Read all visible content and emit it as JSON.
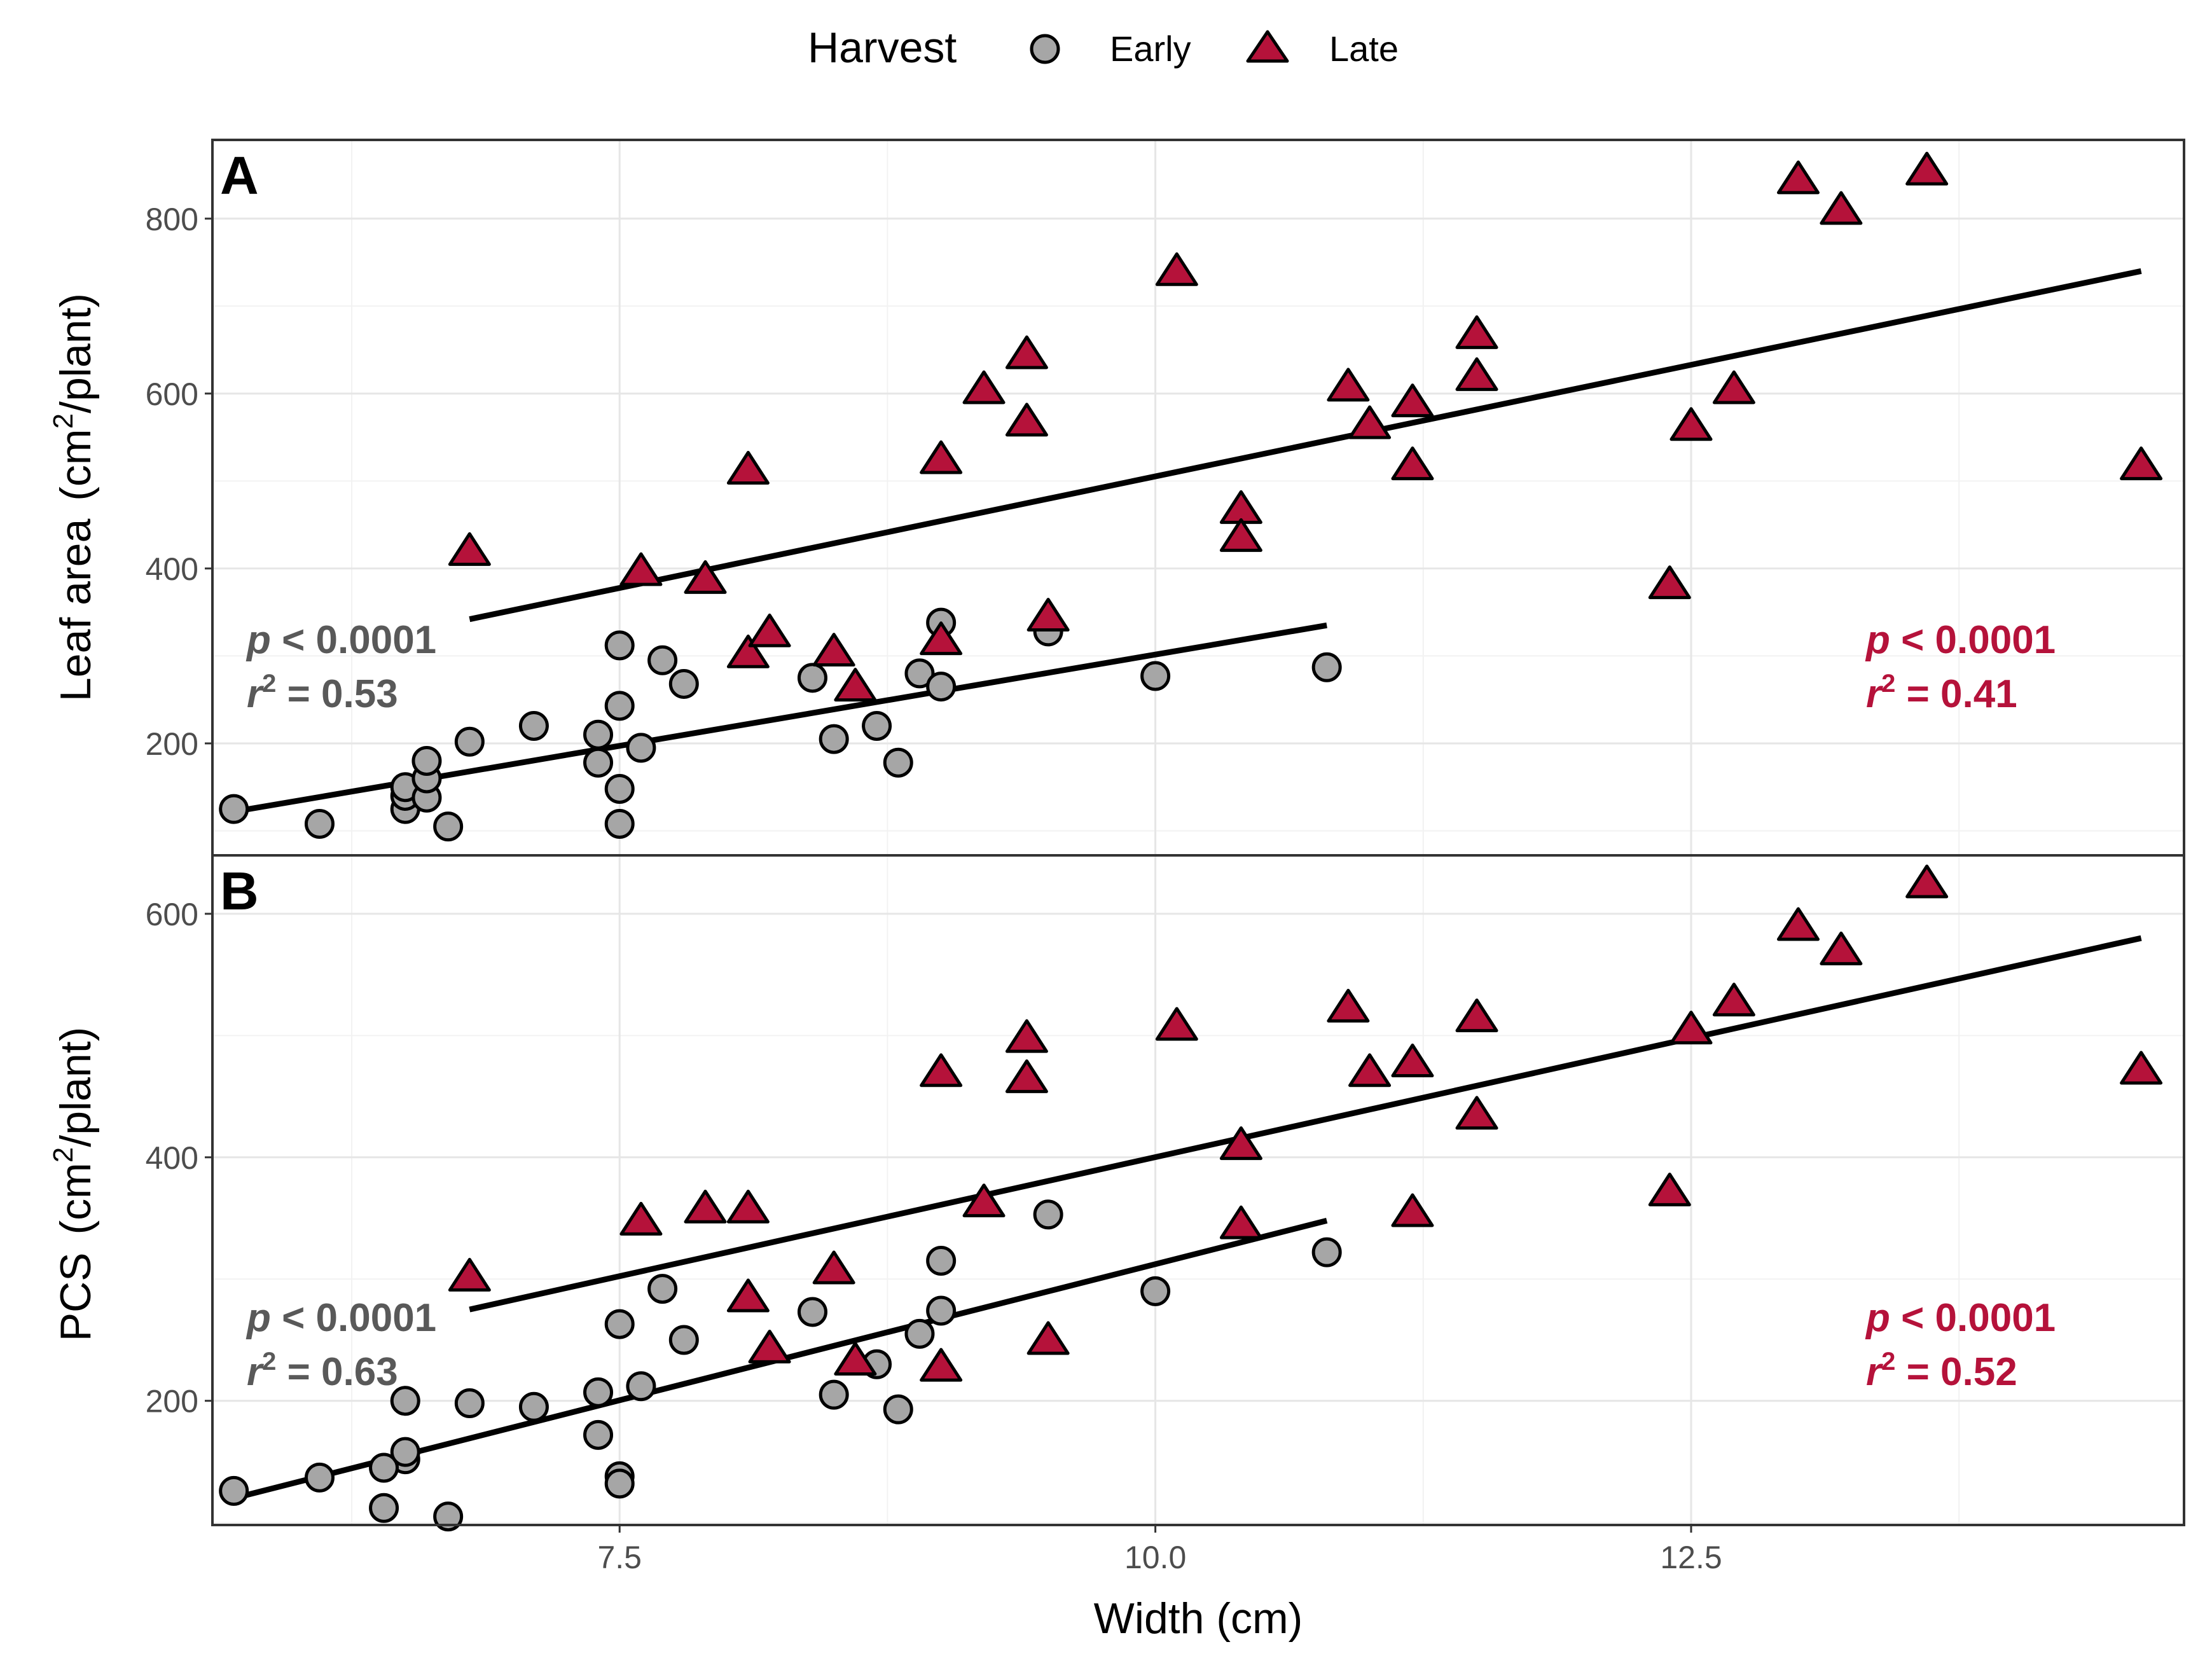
{
  "legend": {
    "title": "Harvest",
    "entries": [
      {
        "label": "Early",
        "shape": "circle",
        "color": "#a6a6a6"
      },
      {
        "label": "Late",
        "shape": "triangle",
        "color": "#b5123a"
      }
    ]
  },
  "colors": {
    "early_fill": "#a6a6a6",
    "late_fill": "#b5123a",
    "late_text": "#b5123a",
    "early_text": "#595959",
    "fit_line": "#000000"
  },
  "chart_data": [
    {
      "type": "scatter",
      "panel_label": "A",
      "ylabel_main": "Leaf area",
      "ylabel_unit": "(cm",
      "ylabel_sup": "2",
      "ylabel_rest": "/plant)",
      "xlabel": "Width (cm)",
      "xlim": [
        5.6,
        14.8
      ],
      "ylim": [
        72,
        890
      ],
      "yticks": [
        200,
        400,
        600,
        800
      ],
      "ytick_labels": [
        "200",
        "400",
        "600",
        "800"
      ],
      "xticks": [
        7.5,
        10.0,
        12.5
      ],
      "xtick_labels": [
        "7.5",
        "10.0",
        "12.5"
      ],
      "grid": true,
      "series": [
        {
          "name": "Early",
          "marker": "circle",
          "x": [
            5.7,
            6.1,
            6.5,
            6.5,
            6.5,
            6.6,
            6.6,
            6.6,
            6.7,
            6.8,
            7.1,
            7.4,
            7.4,
            7.5,
            7.5,
            7.5,
            7.5,
            7.6,
            7.7,
            7.8,
            8.4,
            8.5,
            8.7,
            8.8,
            8.9,
            9.0,
            9.0,
            9.5,
            10.0,
            10.8
          ],
          "y": [
            125,
            108,
            125,
            140,
            150,
            138,
            160,
            180,
            105,
            202,
            220,
            210,
            178,
            312,
            243,
            148,
            108,
            195,
            295,
            268,
            275,
            205,
            220,
            178,
            280,
            265,
            338,
            328,
            277,
            287
          ],
          "fit": {
            "x": [
              5.7,
              10.8
            ],
            "y": [
              122,
              335
            ]
          },
          "stats": {
            "p": "p",
            "p_rest": " < 0.0001",
            "r": "r",
            "r_sup": "2",
            "r_rest": " = 0.53"
          }
        },
        {
          "name": "Late",
          "marker": "triangle",
          "x": [
            6.8,
            7.6,
            7.9,
            8.1,
            8.1,
            8.2,
            8.5,
            8.6,
            9.0,
            9.0,
            9.2,
            9.4,
            9.4,
            9.5,
            10.1,
            10.4,
            10.4,
            10.9,
            11.0,
            11.2,
            11.2,
            11.5,
            11.5,
            12.4,
            12.5,
            12.7,
            13.0,
            13.2,
            13.6,
            14.6
          ],
          "y": [
            420,
            397,
            388,
            513,
            303,
            327,
            305,
            265,
            525,
            318,
            605,
            568,
            645,
            345,
            740,
            468,
            436,
            608,
            565,
            590,
            518,
            668,
            620,
            382,
            563,
            605,
            845,
            810,
            855,
            518
          ],
          "fit": {
            "x": [
              6.8,
              14.6
            ],
            "y": [
              342,
              740
            ]
          },
          "stats": {
            "p": "p",
            "p_rest": " < 0.0001",
            "r": "r",
            "r_sup": "2",
            "r_rest": " = 0.41"
          }
        }
      ]
    },
    {
      "type": "scatter",
      "panel_label": "B",
      "ylabel_main": "PCS",
      "ylabel_unit": "(cm",
      "ylabel_sup": "2",
      "ylabel_rest": "/plant)",
      "xlabel": "Width (cm)",
      "xlim": [
        5.6,
        14.8
      ],
      "ylim": [
        98,
        648
      ],
      "yticks": [
        200,
        400,
        600
      ],
      "ytick_labels": [
        "200",
        "400",
        "600"
      ],
      "xticks": [
        7.5,
        10.0,
        12.5
      ],
      "xtick_labels": [
        "7.5",
        "10.0",
        "12.5"
      ],
      "grid": true,
      "series": [
        {
          "name": "Early",
          "marker": "circle",
          "x": [
            5.7,
            6.1,
            6.4,
            6.5,
            6.4,
            6.5,
            6.5,
            6.7,
            6.8,
            7.1,
            7.4,
            7.4,
            7.5,
            7.5,
            7.5,
            7.6,
            7.7,
            7.8,
            8.4,
            8.5,
            8.7,
            8.8,
            8.9,
            9.0,
            9.0,
            9.5,
            10.0,
            10.8
          ],
          "y": [
            126,
            137,
            112,
            152,
            145,
            158,
            200,
            105,
            198,
            195,
            207,
            172,
            263,
            138,
            132,
            212,
            292,
            250,
            273,
            205,
            230,
            193,
            255,
            274,
            315,
            353,
            290,
            322
          ],
          "fit": {
            "x": [
              5.7,
              10.8
            ],
            "y": [
              120,
              348
            ]
          },
          "stats": {
            "p": "p",
            "p_rest": " < 0.0001",
            "r": "r",
            "r_sup": "2",
            "r_rest": " = 0.63"
          }
        },
        {
          "name": "Late",
          "marker": "triangle",
          "x": [
            6.8,
            7.6,
            7.9,
            8.1,
            8.1,
            8.2,
            8.5,
            8.6,
            9.0,
            9.0,
            9.2,
            9.4,
            9.4,
            9.5,
            10.1,
            10.4,
            10.4,
            10.9,
            11.0,
            11.2,
            11.2,
            11.5,
            11.5,
            12.4,
            12.5,
            12.7,
            13.0,
            13.2,
            13.6,
            14.6
          ],
          "y": [
            302,
            348,
            358,
            358,
            285,
            243,
            308,
            233,
            470,
            228,
            363,
            498,
            465,
            250,
            508,
            410,
            345,
            523,
            470,
            478,
            355,
            515,
            435,
            372,
            505,
            528,
            590,
            570,
            625,
            472
          ],
          "fit": {
            "x": [
              6.8,
              14.6
            ],
            "y": [
              275,
              580
            ]
          },
          "stats": {
            "p": "p",
            "p_rest": " < 0.0001",
            "r": "r",
            "r_sup": "2",
            "r_rest": " = 0.52"
          }
        }
      ]
    }
  ]
}
